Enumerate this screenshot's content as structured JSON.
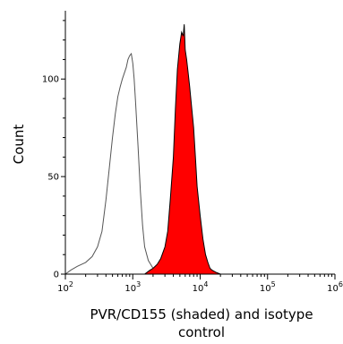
{
  "chart_data": {
    "type": "area",
    "xlabel_lines": [
      "PVR/CD155 (shaded) and isotype",
      "control"
    ],
    "ylabel": "Count",
    "x_scale": "log",
    "xlim": [
      100,
      1000000
    ],
    "ylim": [
      0,
      135
    ],
    "y_ticks": [
      0,
      50,
      100
    ],
    "y_tick_labels": [
      "0",
      "50",
      "100"
    ],
    "x_ticks": [
      {
        "value": 100,
        "base": "10",
        "exp": "2"
      },
      {
        "value": 1000,
        "base": "10",
        "exp": "3"
      },
      {
        "value": 10000,
        "base": "10",
        "exp": "4"
      },
      {
        "value": 100000,
        "base": "10",
        "exp": "5"
      },
      {
        "value": 1000000,
        "base": "10",
        "exp": "6"
      }
    ],
    "grid": false,
    "colors": {
      "shaded": "#ff0000",
      "outline": "#000000",
      "isotype": "#555555"
    },
    "series": [
      {
        "style": "outline",
        "x": [
          100,
          120,
          150,
          200,
          250,
          300,
          350,
          400,
          450,
          500,
          550,
          600,
          650,
          700,
          750,
          800,
          850,
          900,
          950,
          1000,
          1050,
          1100,
          1200,
          1300,
          1400,
          1500,
          1700,
          2000,
          2500,
          3000,
          4000,
          6000,
          10000
        ],
        "y": [
          0,
          2,
          4,
          6,
          9,
          14,
          22,
          38,
          55,
          70,
          82,
          91,
          96,
          100,
          103,
          106,
          110,
          112,
          113,
          108,
          100,
          88,
          65,
          42,
          25,
          14,
          7,
          3,
          2,
          2,
          1,
          0,
          0
        ]
      },
      {
        "style": "shaded",
        "x": [
          1500,
          1800,
          2000,
          2300,
          2600,
          3000,
          3300,
          3600,
          4000,
          4300,
          4600,
          5000,
          5300,
          5600,
          5800,
          6000,
          6300,
          6600,
          7000,
          7500,
          8000,
          8500,
          9000,
          10000,
          11000,
          12000,
          13000,
          14000,
          15000,
          17000,
          20000
        ],
        "y": [
          0,
          2,
          3,
          5,
          8,
          14,
          22,
          38,
          60,
          85,
          105,
          118,
          124,
          122,
          128,
          115,
          110,
          104,
          96,
          85,
          75,
          60,
          45,
          30,
          18,
          10,
          6,
          3,
          2,
          1,
          0
        ]
      }
    ]
  }
}
